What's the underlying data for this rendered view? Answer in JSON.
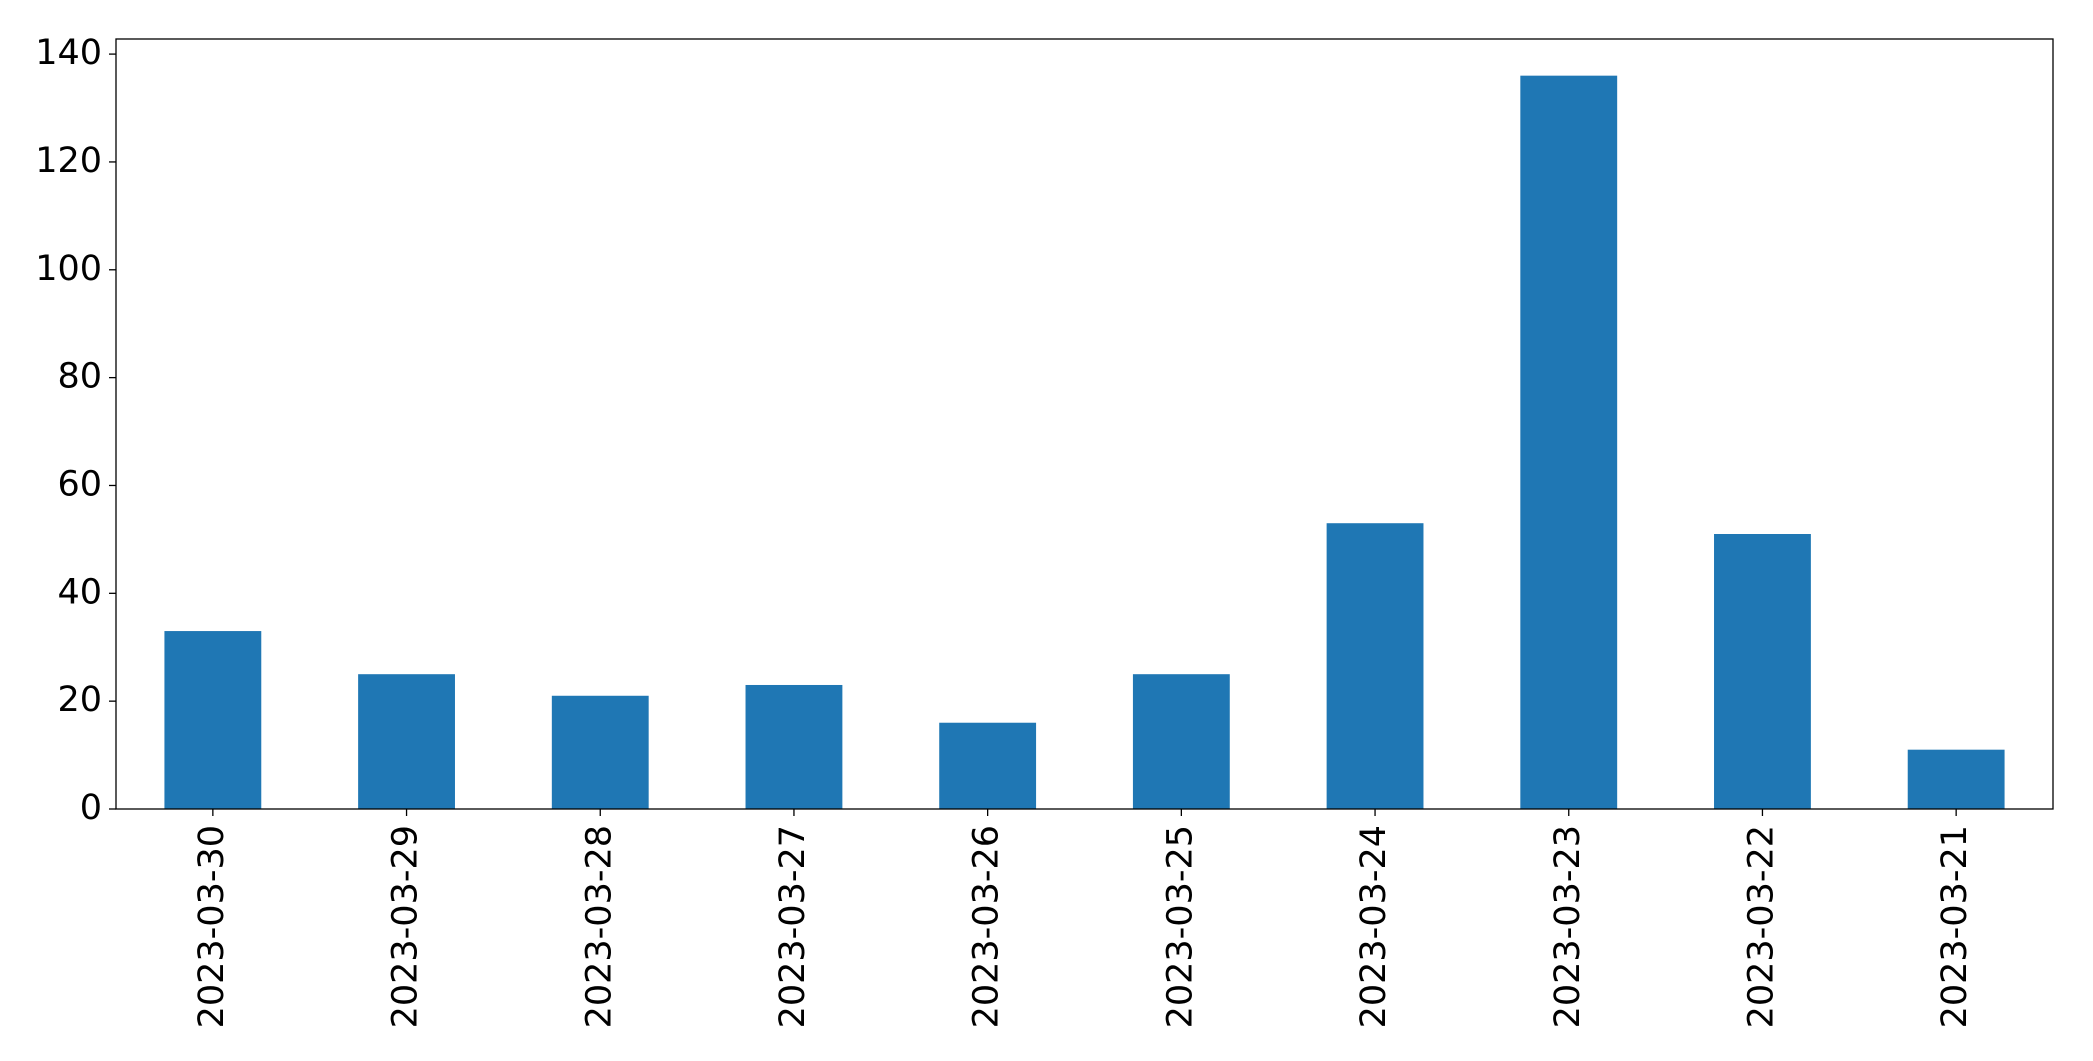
{
  "chart_data": {
    "type": "bar",
    "categories": [
      "2023-03-30",
      "2023-03-29",
      "2023-03-28",
      "2023-03-27",
      "2023-03-26",
      "2023-03-25",
      "2023-03-24",
      "2023-03-23",
      "2023-03-22",
      "2023-03-21"
    ],
    "values": [
      33,
      25,
      21,
      23,
      16,
      25,
      53,
      136,
      51,
      11
    ],
    "color": "#1f77b4",
    "ylim": [
      0,
      142.8
    ],
    "yticks": [
      0,
      20,
      40,
      60,
      80,
      100,
      120,
      140
    ],
    "grid": false
  }
}
